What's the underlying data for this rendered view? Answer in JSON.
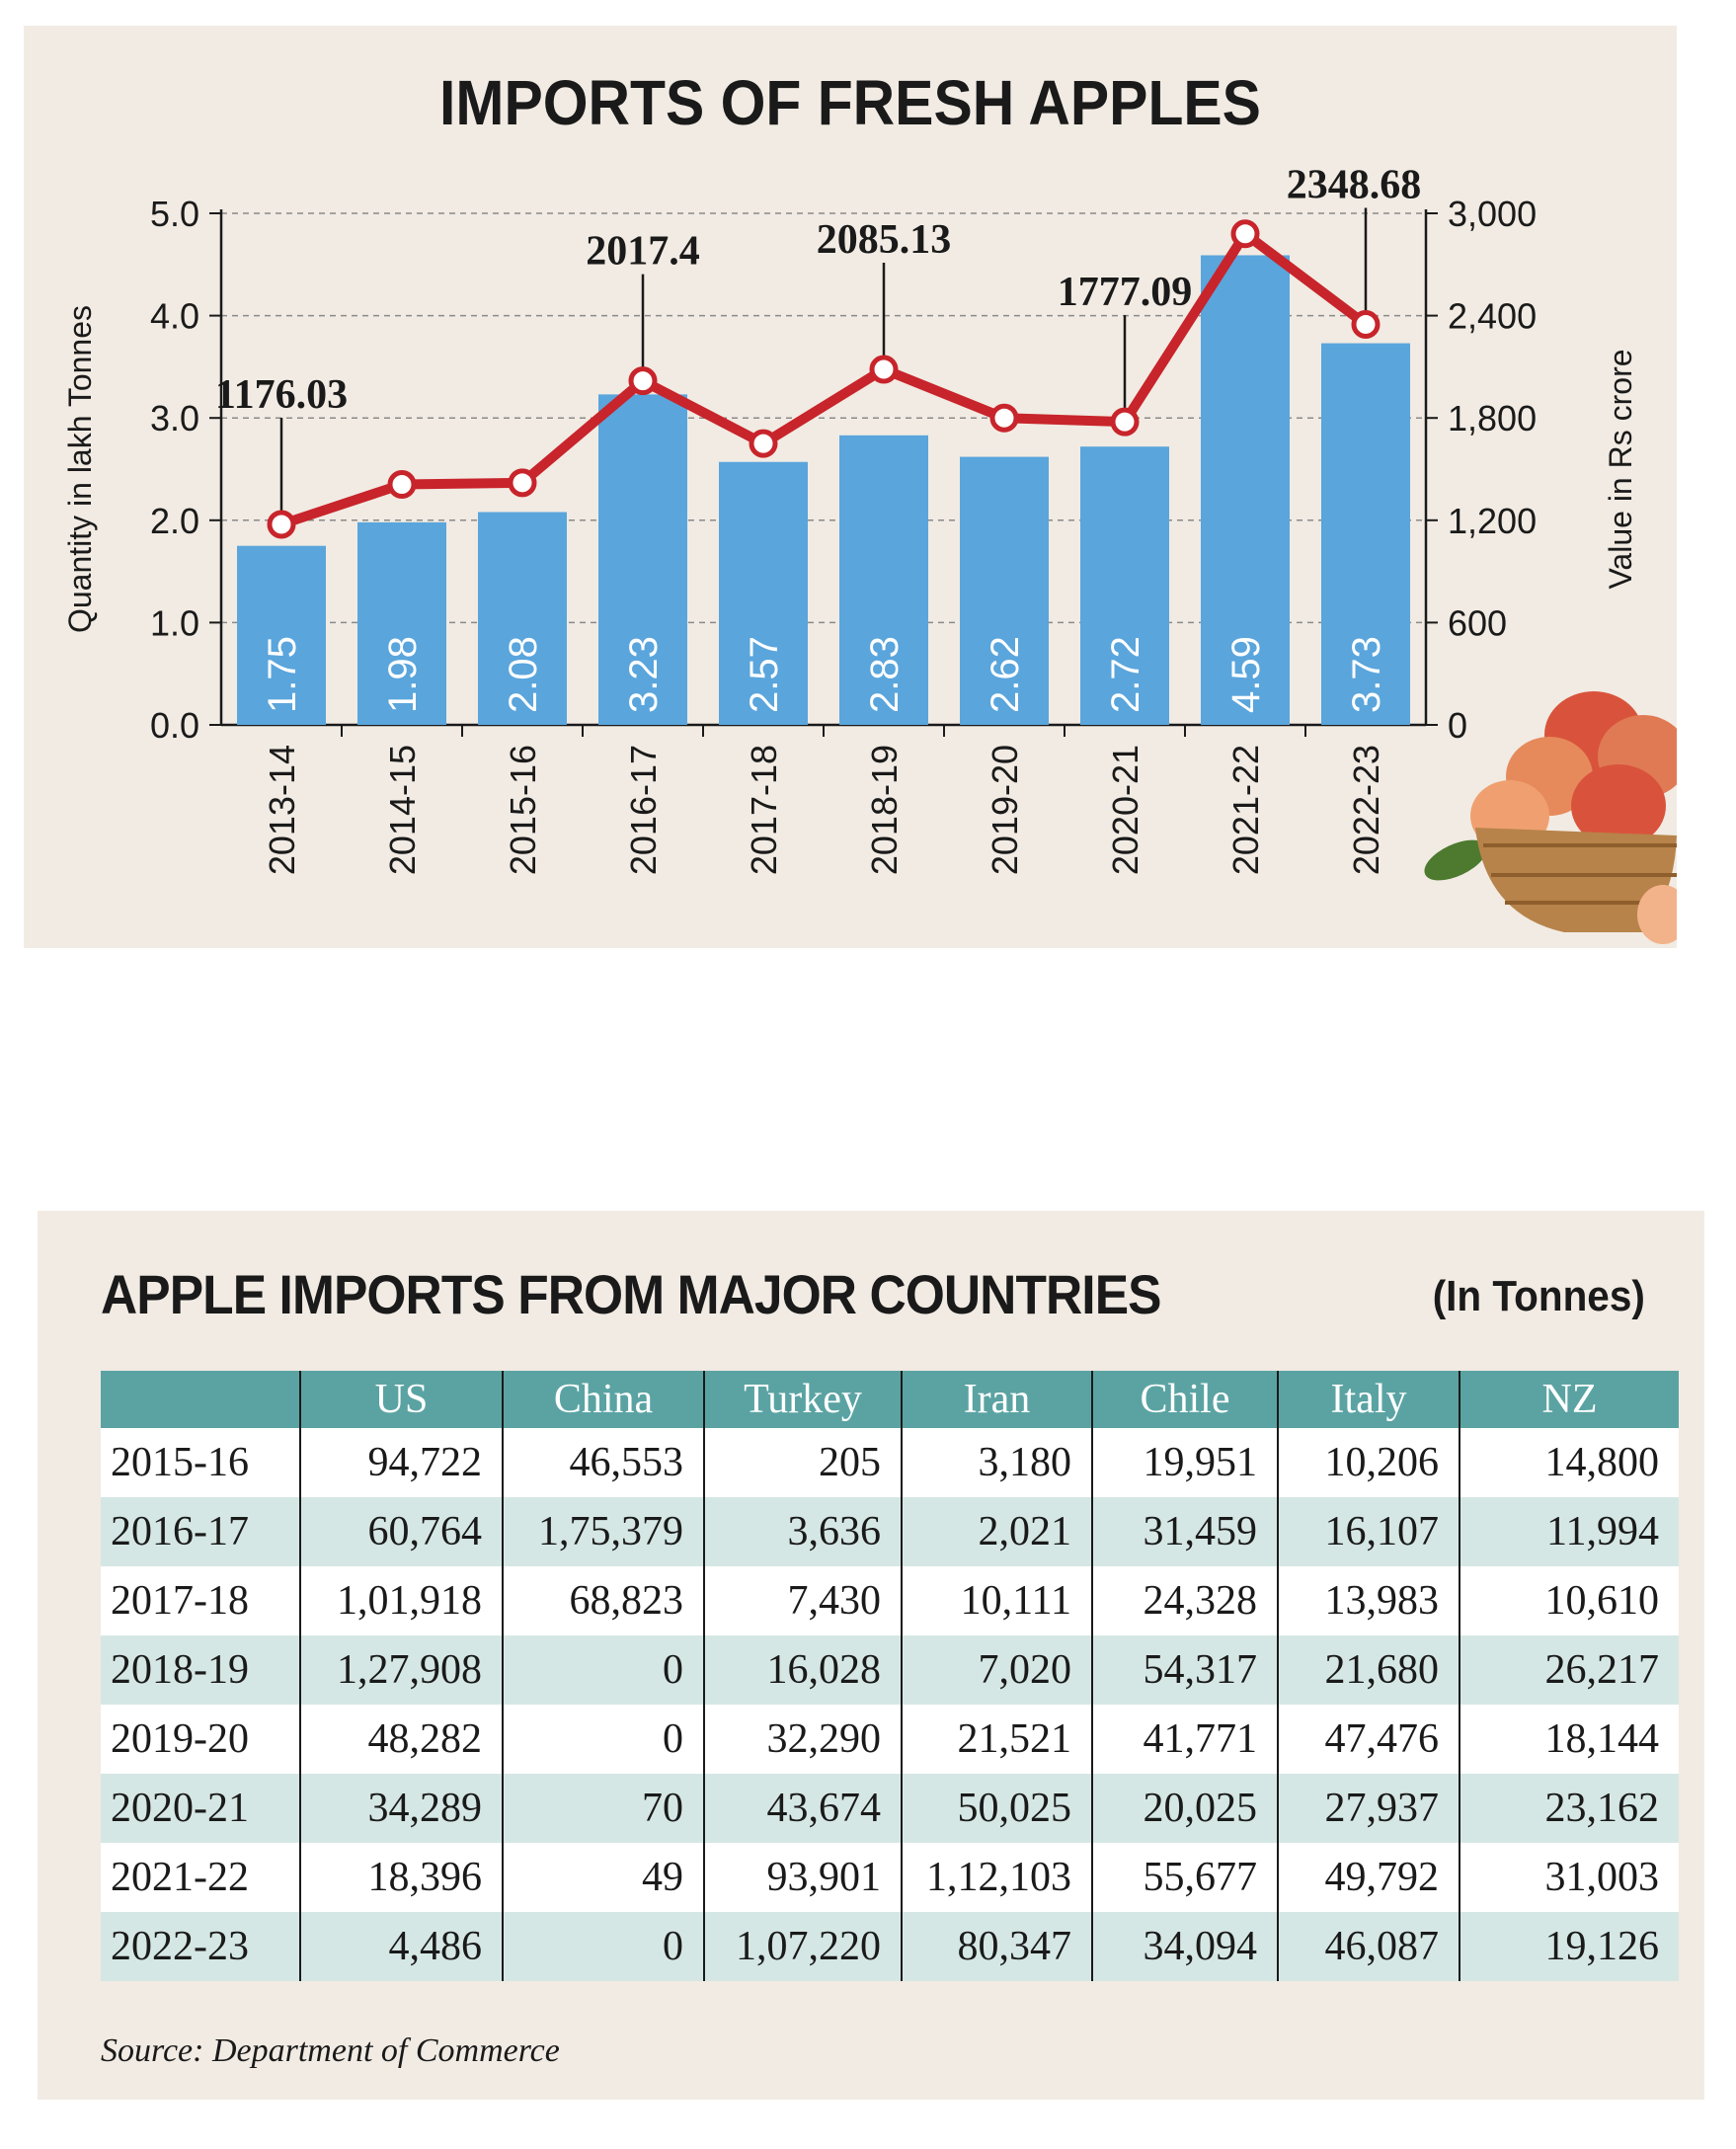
{
  "chart_data": [
    {
      "type": "bar+line",
      "title": "IMPORTS OF FRESH APPLES",
      "categories": [
        "2013-14",
        "2014-15",
        "2015-16",
        "2016-17",
        "2017-18",
        "2018-19",
        "2019-20",
        "2020-21",
        "2021-22",
        "2022-23"
      ],
      "series": [
        {
          "type": "bar",
          "axis": "left",
          "color": "#5aa5dc",
          "values": [
            1.75,
            1.98,
            2.08,
            3.23,
            2.57,
            2.83,
            2.62,
            2.72,
            4.59,
            3.73
          ],
          "labels": [
            "1.75",
            "1.98",
            "2.08",
            "3.23",
            "2.57",
            "2.83",
            "2.62",
            "2.72",
            "4.59",
            "3.73"
          ]
        },
        {
          "type": "line",
          "axis": "right",
          "color": "#c8242b",
          "values": [
            1176.03,
            1410,
            1420,
            2017.4,
            1650,
            2085.13,
            1800,
            1777.09,
            2880,
            2348.68
          ],
          "callouts": [
            {
              "index": 0,
              "label": "1176.03"
            },
            {
              "index": 3,
              "label": "2017.4"
            },
            {
              "index": 5,
              "label": "2085.13"
            },
            {
              "index": 7,
              "label": "1777.09"
            },
            {
              "index": 9,
              "label": "2348.68"
            }
          ]
        }
      ],
      "ylabel": "Quantity in lakh Tonnes",
      "ylim": [
        0,
        5
      ],
      "yticks": [
        "0.0",
        "1.0",
        "2.0",
        "3.0",
        "4.0",
        "5.0"
      ],
      "y2label": "Value in Rs crore",
      "y2lim": [
        0,
        3000
      ],
      "y2ticks": [
        "0",
        "600",
        "1,200",
        "1,800",
        "2,400",
        "3,000"
      ],
      "grid": "horizontal dashed"
    },
    {
      "type": "table",
      "title": "APPLE IMPORTS FROM MAJOR COUNTRIES",
      "unit": "(In Tonnes)",
      "columns": [
        "",
        "US",
        "China",
        "Turkey",
        "Iran",
        "Chile",
        "Italy",
        "NZ"
      ],
      "rows": [
        [
          "2015-16",
          "94,722",
          "46,553",
          "205",
          "3,180",
          "19,951",
          "10,206",
          "14,800"
        ],
        [
          "2016-17",
          "60,764",
          "1,75,379",
          "3,636",
          "2,021",
          "31,459",
          "16,107",
          "11,994"
        ],
        [
          "2017-18",
          "1,01,918",
          "68,823",
          "7,430",
          "10,111",
          "24,328",
          "13,983",
          "10,610"
        ],
        [
          "2018-19",
          "1,27,908",
          "0",
          "16,028",
          "7,020",
          "54,317",
          "21,680",
          "26,217"
        ],
        [
          "2019-20",
          "48,282",
          "0",
          "32,290",
          "21,521",
          "41,771",
          "47,476",
          "18,144"
        ],
        [
          "2020-21",
          "34,289",
          "70",
          "43,674",
          "50,025",
          "20,025",
          "27,937",
          "23,162"
        ],
        [
          "2021-22",
          "18,396",
          "49",
          "93,901",
          "1,12,103",
          "55,677",
          "49,792",
          "31,003"
        ],
        [
          "2022-23",
          "4,486",
          "0",
          "1,07,220",
          "80,347",
          "34,094",
          "46,087",
          "19,126"
        ]
      ],
      "source": "Source: Department of Commerce"
    }
  ],
  "decoration": {
    "name": "apple-basket-icon",
    "colors": {
      "apples": "#d9533c",
      "basket": "#b7834a"
    }
  }
}
